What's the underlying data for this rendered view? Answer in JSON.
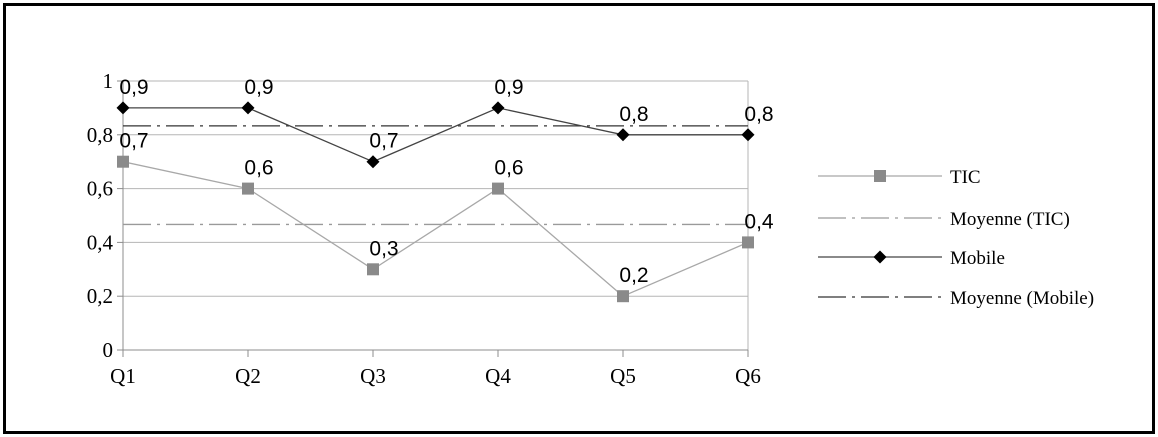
{
  "chart_data": {
    "type": "line",
    "categories": [
      "Q1",
      "Q2",
      "Q3",
      "Q4",
      "Q5",
      "Q6"
    ],
    "y_tick_labels": [
      "0",
      "0,2",
      "0,4",
      "0,6",
      "0,8",
      "1"
    ],
    "y_ticks": [
      0,
      0.2,
      0.4,
      0.6,
      0.8,
      1
    ],
    "ylim": [
      0,
      1
    ],
    "grid": true,
    "legend_position": "right",
    "series": [
      {
        "name": "TIC",
        "values": [
          0.7,
          0.6,
          0.3,
          0.6,
          0.2,
          0.4
        ],
        "labels": [
          "0,7",
          "0,6",
          "0,3",
          "0,6",
          "0,2",
          "0,4"
        ],
        "marker": "square",
        "color": "#8a8a8a"
      },
      {
        "name": "Mobile",
        "values": [
          0.9,
          0.9,
          0.7,
          0.9,
          0.8,
          0.8
        ],
        "labels": [
          "0,9",
          "0,9",
          "0,7",
          "0,9",
          "0,8",
          "0,8"
        ],
        "marker": "diamond",
        "color": "#000000"
      }
    ],
    "averages": [
      {
        "name": "Moyenne (TIC)",
        "value": 0.4667,
        "color": "#9a9a9a",
        "style": "dash-dot"
      },
      {
        "name": "Moyenne (Mobile)",
        "value": 0.8333,
        "color": "#333333",
        "style": "dash-dot"
      }
    ],
    "legend": [
      "TIC",
      "Moyenne (TIC)",
      "Mobile",
      "Moyenne (Mobile)"
    ]
  }
}
